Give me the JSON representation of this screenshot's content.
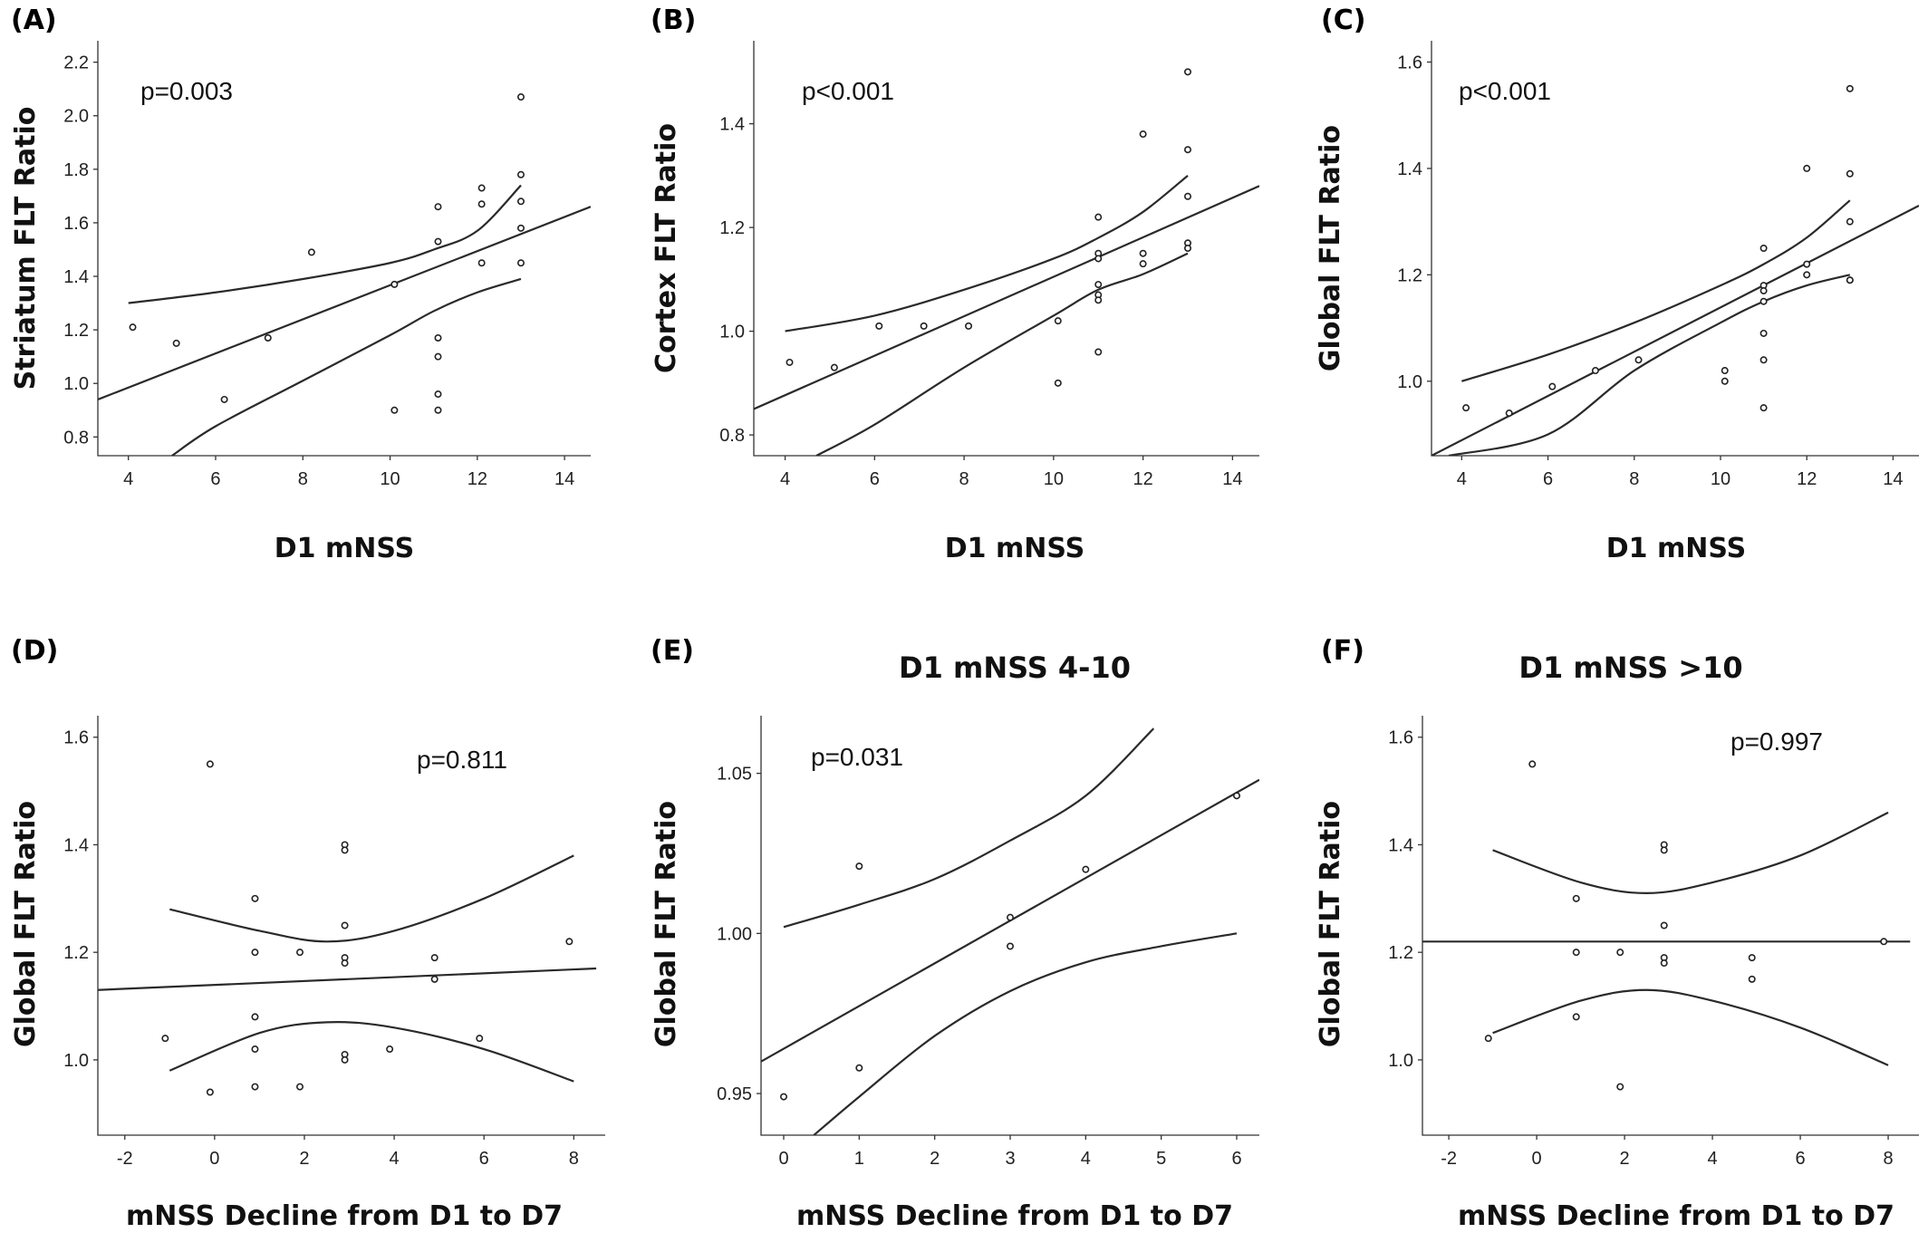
{
  "chart_data": [
    {
      "panel": "(A)",
      "type": "scatter",
      "title": "",
      "p_value": "p=0.003",
      "xlabel": "D1 mNSS",
      "ylabel": "Striatum FLT Ratio",
      "xlim": [
        3.3,
        14.6
      ],
      "ylim": [
        0.73,
        2.28
      ],
      "xticks": [
        4,
        6,
        8,
        10,
        12,
        14
      ],
      "yticks": [
        0.8,
        1.0,
        1.2,
        1.4,
        1.6,
        1.8,
        2.0,
        2.2
      ],
      "tick_decimals": [
        0,
        1
      ],
      "points": [
        [
          4.1,
          1.21
        ],
        [
          5.1,
          1.15
        ],
        [
          6.2,
          0.94
        ],
        [
          7.2,
          1.17
        ],
        [
          8.2,
          1.49
        ],
        [
          10.1,
          0.9
        ],
        [
          10.1,
          1.37
        ],
        [
          11.1,
          1.66
        ],
        [
          11.1,
          1.53
        ],
        [
          11.1,
          1.17
        ],
        [
          11.1,
          1.1
        ],
        [
          11.1,
          0.96
        ],
        [
          11.1,
          0.9
        ],
        [
          12.1,
          1.73
        ],
        [
          12.1,
          1.67
        ],
        [
          12.1,
          1.45
        ],
        [
          13.0,
          2.07
        ],
        [
          13.0,
          1.78
        ],
        [
          13.0,
          1.68
        ],
        [
          13.0,
          1.58
        ],
        [
          13.0,
          1.45
        ]
      ],
      "fit_line": [
        [
          3.3,
          0.94
        ],
        [
          14.6,
          1.66
        ]
      ],
      "ci_upper": [
        [
          4.0,
          1.3
        ],
        [
          6.0,
          1.34
        ],
        [
          8.0,
          1.39
        ],
        [
          10.0,
          1.45
        ],
        [
          11.0,
          1.5
        ],
        [
          12.0,
          1.57
        ],
        [
          13.0,
          1.74
        ]
      ],
      "ci_lower": [
        [
          5.0,
          0.73
        ],
        [
          6.0,
          0.84
        ],
        [
          8.0,
          1.01
        ],
        [
          10.0,
          1.18
        ],
        [
          11.0,
          1.27
        ],
        [
          12.0,
          1.34
        ],
        [
          13.0,
          1.39
        ]
      ]
    },
    {
      "panel": "(B)",
      "type": "scatter",
      "title": "",
      "p_value": "p<0.001",
      "xlabel": "D1 mNSS",
      "ylabel": "Cortex FLT Ratio",
      "xlim": [
        3.3,
        14.6
      ],
      "ylim": [
        0.76,
        1.56
      ],
      "xticks": [
        4,
        6,
        8,
        10,
        12,
        14
      ],
      "yticks": [
        0.8,
        1.0,
        1.2,
        1.4
      ],
      "tick_decimals": [
        0,
        1
      ],
      "points": [
        [
          4.1,
          0.94
        ],
        [
          5.1,
          0.93
        ],
        [
          6.1,
          1.01
        ],
        [
          7.1,
          1.01
        ],
        [
          8.1,
          1.01
        ],
        [
          10.1,
          1.02
        ],
        [
          10.1,
          0.9
        ],
        [
          11.0,
          1.22
        ],
        [
          11.0,
          1.15
        ],
        [
          11.0,
          1.14
        ],
        [
          11.0,
          1.09
        ],
        [
          11.0,
          1.07
        ],
        [
          11.0,
          1.06
        ],
        [
          11.0,
          0.96
        ],
        [
          12.0,
          1.38
        ],
        [
          12.0,
          1.15
        ],
        [
          12.0,
          1.13
        ],
        [
          13.0,
          1.5
        ],
        [
          13.0,
          1.35
        ],
        [
          13.0,
          1.26
        ],
        [
          13.0,
          1.17
        ],
        [
          13.0,
          1.16
        ]
      ],
      "fit_line": [
        [
          3.3,
          0.85
        ],
        [
          14.6,
          1.28
        ]
      ],
      "ci_upper": [
        [
          4.0,
          1.0
        ],
        [
          6.0,
          1.03
        ],
        [
          8.0,
          1.08
        ],
        [
          10.0,
          1.14
        ],
        [
          11.0,
          1.18
        ],
        [
          12.0,
          1.23
        ],
        [
          13.0,
          1.3
        ]
      ],
      "ci_lower": [
        [
          4.7,
          0.76
        ],
        [
          6.0,
          0.82
        ],
        [
          8.0,
          0.93
        ],
        [
          10.0,
          1.03
        ],
        [
          11.0,
          1.08
        ],
        [
          12.0,
          1.11
        ],
        [
          13.0,
          1.15
        ]
      ]
    },
    {
      "panel": "(C)",
      "type": "scatter",
      "title": "",
      "p_value": "p<0.001",
      "xlabel": "D1 mNSS",
      "ylabel": "Global FLT Ratio",
      "xlim": [
        3.3,
        14.6
      ],
      "ylim": [
        0.86,
        1.64
      ],
      "xticks": [
        4,
        6,
        8,
        10,
        12,
        14
      ],
      "yticks": [
        1.0,
        1.2,
        1.4,
        1.6
      ],
      "tick_decimals": [
        0,
        1
      ],
      "points": [
        [
          4.1,
          0.95
        ],
        [
          5.1,
          0.94
        ],
        [
          6.1,
          0.99
        ],
        [
          7.1,
          1.02
        ],
        [
          8.1,
          1.04
        ],
        [
          10.1,
          1.02
        ],
        [
          10.1,
          1.0
        ],
        [
          11.0,
          1.25
        ],
        [
          11.0,
          1.18
        ],
        [
          11.0,
          1.17
        ],
        [
          11.0,
          1.15
        ],
        [
          11.0,
          1.09
        ],
        [
          11.0,
          1.04
        ],
        [
          11.0,
          0.95
        ],
        [
          12.0,
          1.4
        ],
        [
          12.0,
          1.22
        ],
        [
          12.0,
          1.2
        ],
        [
          13.0,
          1.55
        ],
        [
          13.0,
          1.39
        ],
        [
          13.0,
          1.3
        ],
        [
          13.0,
          1.19
        ],
        [
          13.0,
          1.19
        ]
      ],
      "fit_line": [
        [
          3.3,
          0.86
        ],
        [
          14.6,
          1.33
        ]
      ],
      "ci_upper": [
        [
          4.0,
          1.0
        ],
        [
          6.0,
          1.05
        ],
        [
          8.0,
          1.11
        ],
        [
          10.0,
          1.18
        ],
        [
          11.0,
          1.22
        ],
        [
          12.0,
          1.27
        ],
        [
          13.0,
          1.34
        ]
      ],
      "ci_lower": [
        [
          3.7,
          0.86
        ],
        [
          6.0,
          0.9
        ],
        [
          8.0,
          1.02
        ],
        [
          10.0,
          1.11
        ],
        [
          11.0,
          1.15
        ],
        [
          12.0,
          1.18
        ],
        [
          13.0,
          1.2
        ]
      ]
    },
    {
      "panel": "(D)",
      "type": "scatter",
      "title": "",
      "p_value": "p=0.811",
      "xlabel": "mNSS Decline from D1 to D7",
      "ylabel": "Global FLT Ratio",
      "xlim": [
        -2.6,
        8.7
      ],
      "ylim": [
        0.86,
        1.64
      ],
      "xticks": [
        -2,
        0,
        2,
        4,
        6,
        8
      ],
      "yticks": [
        1.0,
        1.2,
        1.4,
        1.6
      ],
      "tick_decimals": [
        0,
        1
      ],
      "points": [
        [
          -1.1,
          1.04
        ],
        [
          -0.1,
          1.55
        ],
        [
          -0.1,
          0.94
        ],
        [
          0.9,
          1.3
        ],
        [
          0.9,
          1.2
        ],
        [
          0.9,
          1.08
        ],
        [
          0.9,
          1.02
        ],
        [
          0.9,
          0.95
        ],
        [
          1.9,
          1.2
        ],
        [
          1.9,
          0.95
        ],
        [
          2.9,
          1.4
        ],
        [
          2.9,
          1.39
        ],
        [
          2.9,
          1.25
        ],
        [
          2.9,
          1.19
        ],
        [
          2.9,
          1.18
        ],
        [
          2.9,
          1.01
        ],
        [
          2.9,
          1.0
        ],
        [
          3.9,
          1.02
        ],
        [
          4.9,
          1.19
        ],
        [
          4.9,
          1.15
        ],
        [
          5.9,
          1.04
        ],
        [
          7.9,
          1.22
        ]
      ],
      "fit_line": [
        [
          -2.6,
          1.13
        ],
        [
          8.5,
          1.17
        ]
      ],
      "ci_upper": [
        [
          -1.0,
          1.28
        ],
        [
          1.0,
          1.24
        ],
        [
          2.5,
          1.22
        ],
        [
          4.0,
          1.24
        ],
        [
          6.0,
          1.3
        ],
        [
          8.0,
          1.38
        ]
      ],
      "ci_lower": [
        [
          -1.0,
          0.98
        ],
        [
          1.0,
          1.05
        ],
        [
          2.5,
          1.07
        ],
        [
          4.0,
          1.06
        ],
        [
          6.0,
          1.02
        ],
        [
          8.0,
          0.96
        ]
      ]
    },
    {
      "panel": "(E)",
      "type": "scatter",
      "title": "D1 mNSS 4-10",
      "p_value": "p=0.031",
      "xlabel": "mNSS Decline from D1 to D7",
      "ylabel": "Global FLT Ratio",
      "xlim": [
        -0.3,
        6.3
      ],
      "ylim": [
        0.937,
        1.068
      ],
      "xticks": [
        0,
        1,
        2,
        3,
        4,
        5,
        6
      ],
      "yticks": [
        0.95,
        1.0,
        1.05
      ],
      "tick_decimals": [
        0,
        2
      ],
      "points": [
        [
          0.0,
          0.949
        ],
        [
          1.0,
          1.021
        ],
        [
          1.0,
          0.958
        ],
        [
          3.0,
          1.005
        ],
        [
          3.0,
          0.996
        ],
        [
          4.0,
          1.02
        ],
        [
          6.0,
          1.043
        ]
      ],
      "fit_line": [
        [
          -0.3,
          0.96
        ],
        [
          6.3,
          1.048
        ]
      ],
      "ci_upper": [
        [
          0.0,
          1.002
        ],
        [
          1.0,
          1.009
        ],
        [
          2.0,
          1.017
        ],
        [
          3.0,
          1.029
        ],
        [
          4.0,
          1.043
        ],
        [
          4.9,
          1.064
        ]
      ],
      "ci_lower": [
        [
          0.4,
          0.937
        ],
        [
          1.0,
          0.949
        ],
        [
          2.0,
          0.968
        ],
        [
          3.0,
          0.982
        ],
        [
          4.0,
          0.991
        ],
        [
          5.0,
          0.996
        ],
        [
          6.0,
          1.0
        ]
      ]
    },
    {
      "panel": "(F)",
      "type": "scatter",
      "title": "D1 mNSS >10",
      "p_value": "p=0.997",
      "xlabel": "mNSS Decline from D1 to D7",
      "ylabel": "Global FLT Ratio",
      "xlim": [
        -2.6,
        8.7
      ],
      "ylim": [
        0.86,
        1.64
      ],
      "xticks": [
        -2,
        0,
        2,
        4,
        6,
        8
      ],
      "yticks": [
        1.0,
        1.2,
        1.4,
        1.6
      ],
      "tick_decimals": [
        0,
        1
      ],
      "points": [
        [
          -1.1,
          1.04
        ],
        [
          -0.1,
          1.55
        ],
        [
          0.9,
          1.3
        ],
        [
          0.9,
          1.2
        ],
        [
          0.9,
          1.08
        ],
        [
          1.9,
          1.2
        ],
        [
          1.9,
          0.95
        ],
        [
          2.9,
          1.4
        ],
        [
          2.9,
          1.39
        ],
        [
          2.9,
          1.25
        ],
        [
          2.9,
          1.19
        ],
        [
          2.9,
          1.18
        ],
        [
          4.9,
          1.19
        ],
        [
          4.9,
          1.15
        ],
        [
          7.9,
          1.22
        ]
      ],
      "fit_line": [
        [
          -2.6,
          1.22
        ],
        [
          8.5,
          1.22
        ]
      ],
      "ci_upper": [
        [
          -1.0,
          1.39
        ],
        [
          1.0,
          1.33
        ],
        [
          2.5,
          1.31
        ],
        [
          4.0,
          1.33
        ],
        [
          6.0,
          1.38
        ],
        [
          8.0,
          1.46
        ]
      ],
      "ci_lower": [
        [
          -1.0,
          1.05
        ],
        [
          1.0,
          1.11
        ],
        [
          2.5,
          1.13
        ],
        [
          4.0,
          1.11
        ],
        [
          6.0,
          1.06
        ],
        [
          8.0,
          0.99
        ]
      ]
    }
  ]
}
